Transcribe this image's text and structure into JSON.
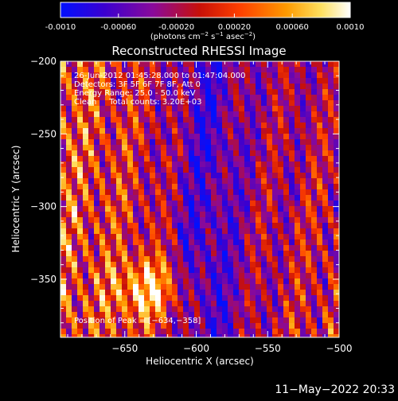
{
  "colorbar": {
    "ticks": [
      "-0.0010",
      "-0.00060",
      "-0.00020",
      "0.00020",
      "0.00060",
      "0.0010"
    ],
    "tick_values": [
      -0.001,
      -0.0006,
      -0.0002,
      0.0002,
      0.0006,
      0.001
    ],
    "range": [
      -0.001,
      0.001
    ],
    "unit_main": "(photons cm",
    "unit_exp1": "−2",
    "unit_mid": " s",
    "unit_exp2": "−1",
    "unit_tail": " asec",
    "unit_exp3": "−2",
    "unit_close": ")",
    "colors": [
      "#0010ff",
      "#3a00d0",
      "#8a0a9a",
      "#c81008",
      "#ff4000",
      "#ff9a00",
      "#ffe060",
      "#ffffff"
    ]
  },
  "chart_data": {
    "type": "heatmap",
    "title": "Reconstructed RHESSI Image",
    "xlabel": "Heliocentric X (arcsec)",
    "ylabel": "Heliocentric Y (arcsec)",
    "xlim": [
      -695,
      -500
    ],
    "ylim": [
      -390,
      -200
    ],
    "x_ticks": [
      -650,
      -600,
      -550,
      -500
    ],
    "x_tick_labels": [
      "−650",
      "−600",
      "−550",
      "−500"
    ],
    "y_ticks": [
      -200,
      -250,
      -300,
      -350
    ],
    "y_tick_labels": [
      "−200",
      "−250",
      "−300",
      "−350"
    ],
    "peak": {
      "x": -634,
      "y": -358
    },
    "annotations": [
      "26-Jun-2012 01:45:28.000 to 01:47:04.000",
      "Detectors: 3F 5F 6F 7F 8F, Att 0",
      "Energy Range: 25.0 - 50.0 keV",
      "Clean     Total counts: 3.20E+03"
    ],
    "peak_label": "Position of Peak = [−634,−358]"
  },
  "footer": {
    "date": "11−May−2022 20:33"
  }
}
